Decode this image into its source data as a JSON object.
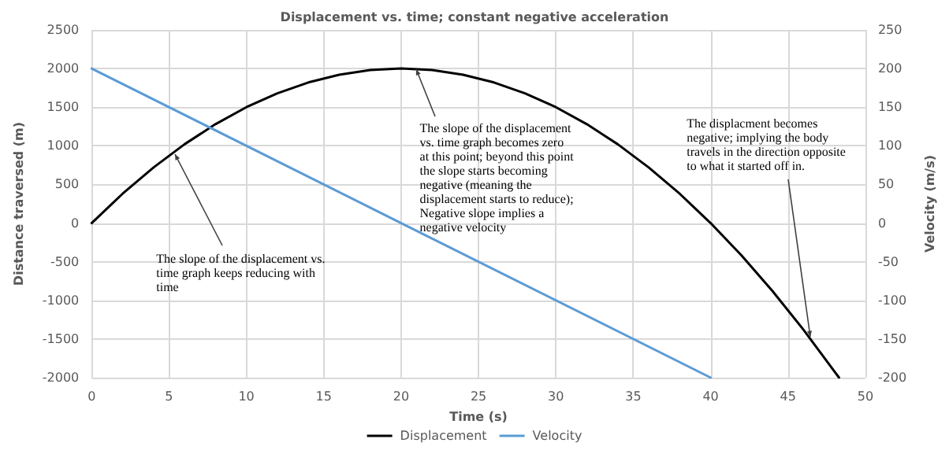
{
  "chart_data": {
    "type": "line",
    "title": "Displacement vs. time; constant negative acceleration",
    "xlabel": "Time (s)",
    "ylabel": "Distance traversed (m)",
    "y2label": "Velocity (m/s)",
    "series": [
      {
        "name": "Displacement",
        "color": "#000000",
        "x": [
          0,
          2,
          4,
          6,
          8,
          10,
          12,
          14,
          16,
          18,
          20,
          22,
          24,
          26,
          28,
          30,
          32,
          34,
          36,
          38,
          40,
          42,
          44,
          46,
          48,
          48.3
        ],
        "values": [
          0,
          380,
          720,
          1020,
          1280,
          1500,
          1680,
          1820,
          1920,
          1980,
          2000,
          1980,
          1920,
          1820,
          1680,
          1500,
          1280,
          1020,
          720,
          380,
          0,
          -420,
          -880,
          -1380,
          -1920,
          -2000
        ]
      },
      {
        "name": "Velocity",
        "color": "#5b9bd5",
        "axis": "y2",
        "x": [
          0,
          20,
          40
        ],
        "values": [
          200,
          0,
          -200
        ]
      }
    ],
    "xlim": [
      0,
      50
    ],
    "xticks": [
      0,
      5,
      10,
      15,
      20,
      25,
      30,
      35,
      40,
      45,
      50
    ],
    "ylim": [
      -2000,
      2500
    ],
    "yticks": [
      -2000,
      -1500,
      -1000,
      -500,
      0,
      500,
      1000,
      1500,
      2000,
      2500
    ],
    "y2lim": [
      -200,
      250
    ],
    "y2ticks": [
      -200,
      -150,
      -100,
      -50,
      0,
      50,
      100,
      150,
      200,
      250
    ],
    "annotations": [
      {
        "text": "The slope of the displacement vs. time graph keeps reducing with time",
        "x": 5.4,
        "y": 900
      },
      {
        "text": "The slope of the displacement vs. time graph becomes zero at this point; beyond this point the slope starts becoming negative (meaning the displacement starts to reduce); Negative slope implies a negative velocity",
        "x": 21,
        "y": 2000
      },
      {
        "text": "The displacment becomes negative; implying the body travels in the direction opposite to what it started off in.",
        "x": 46.4,
        "y": -1480
      }
    ],
    "grid": true,
    "legend": "bottom",
    "marker": "none",
    "line_style": "solid"
  }
}
